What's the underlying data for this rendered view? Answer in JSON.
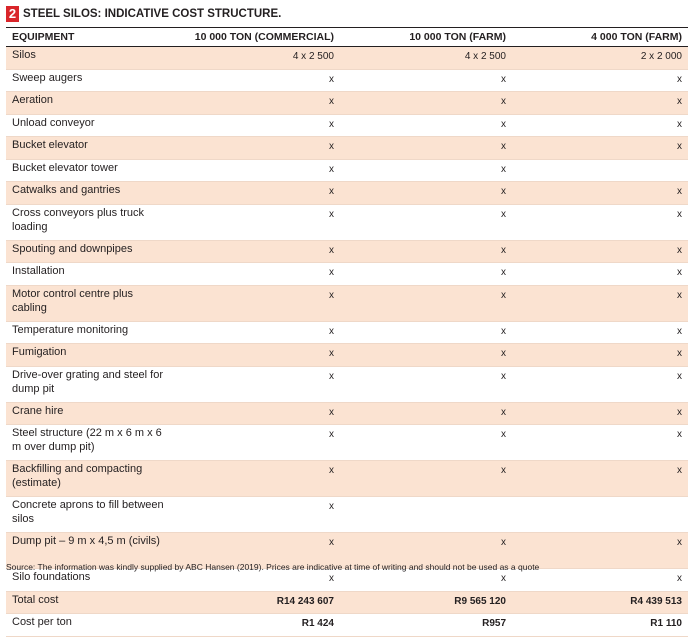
{
  "header": {
    "number": "2",
    "title": "STEEL SILOS: INDICATIVE COST STRUCTURE."
  },
  "table": {
    "columns": [
      "EQUIPMENT",
      "10 000 TON (COMMERCIAL)",
      "10 000 TON (FARM)",
      "4 000 TON (FARM)"
    ],
    "rows": [
      [
        "Silos",
        "4 x 2 500",
        "4 x 2 500",
        "2 x 2 000"
      ],
      [
        "Sweep augers",
        "x",
        "x",
        "x"
      ],
      [
        "Aeration",
        "x",
        "x",
        "x"
      ],
      [
        "Unload conveyor",
        "x",
        "x",
        "x"
      ],
      [
        "Bucket elevator",
        "x",
        "x",
        "x"
      ],
      [
        "Bucket elevator tower",
        "x",
        "x",
        null
      ],
      [
        "Catwalks and gantries",
        "x",
        "x",
        "x"
      ],
      [
        "Cross conveyors plus truck loading",
        "x",
        "x",
        "x"
      ],
      [
        "Spouting and downpipes",
        "x",
        "x",
        "x"
      ],
      [
        "Installation",
        "x",
        "x",
        "x"
      ],
      [
        "Motor control centre plus cabling",
        "x",
        "x",
        "x"
      ],
      [
        "Temperature monitoring",
        "x",
        "x",
        "x"
      ],
      [
        "Fumigation",
        "x",
        "x",
        "x"
      ],
      [
        "Drive-over grating and steel for dump pit",
        "x",
        "x",
        "x"
      ],
      [
        "Crane hire",
        "x",
        "x",
        "x"
      ],
      [
        "Steel structure (22 m x 6 m x 6 m over dump pit)",
        "x",
        "x",
        "x"
      ],
      [
        "Backfilling and compacting (estimate)",
        "x",
        "x",
        "x"
      ],
      [
        "Concrete aprons to fill between silos",
        "x",
        null,
        null
      ],
      [
        "Dump pit – 9 m x 4,5 m (civils)",
        "x",
        "x",
        "x"
      ],
      [
        "Silo foundations",
        "x",
        "x",
        "x"
      ],
      [
        "Total cost",
        "R14 243 607",
        "R9 565 120",
        "R4 439 513"
      ],
      [
        "Cost per ton",
        "R1 424",
        "R957",
        "R1 110"
      ]
    ]
  },
  "source": "Source: The information was kindly supplied by ABC Hansen (2019). Prices are indicative at time of writing and should not be used as a quote"
}
